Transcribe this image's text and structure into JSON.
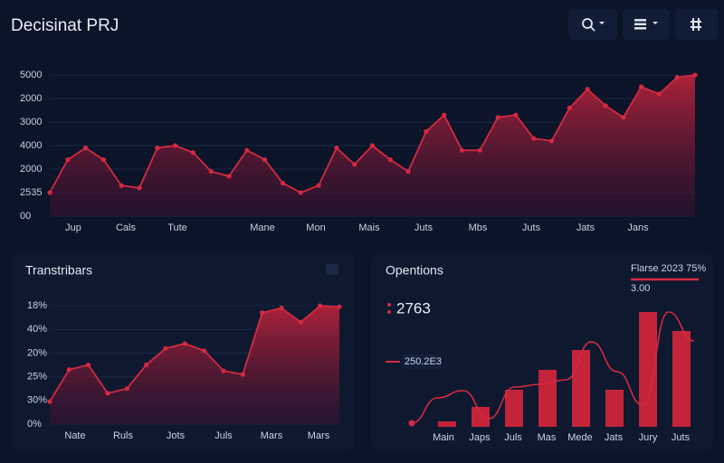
{
  "header": {
    "title": "Decisinat PRJ"
  },
  "chart_data": [
    {
      "type": "area",
      "color": "#d42a40",
      "grid": true,
      "ylim": [
        0,
        6.2
      ],
      "yticks": [
        {
          "value": 0,
          "label": "00"
        },
        {
          "value": 1,
          "label": "2535"
        },
        {
          "value": 2,
          "label": "2000"
        },
        {
          "value": 3,
          "label": "4000"
        },
        {
          "value": 4,
          "label": "3000"
        },
        {
          "value": 5,
          "label": "2000"
        },
        {
          "value": 6,
          "label": "5000"
        }
      ],
      "x_labels": [
        "Jup",
        "Cals",
        "Tute",
        "Mane",
        "Mon",
        "Mais",
        "Juts",
        "Mbs",
        "Juts",
        "Jats",
        "Jans"
      ],
      "values": [
        1.0,
        2.4,
        2.9,
        2.4,
        1.3,
        1.2,
        2.9,
        3.0,
        2.7,
        1.9,
        1.7,
        2.8,
        2.4,
        1.4,
        1.0,
        1.3,
        2.9,
        2.2,
        3.0,
        2.4,
        1.9,
        3.6,
        4.3,
        2.8,
        2.8,
        4.2,
        4.3,
        3.3,
        3.2,
        4.6,
        5.4,
        4.7,
        4.2,
        5.5,
        5.2,
        5.9,
        6.0
      ]
    },
    {
      "type": "area",
      "title": "Transtribars",
      "color": "#d42a40",
      "grid": true,
      "ylim": [
        0,
        5.2
      ],
      "yticks": [
        {
          "value": 0,
          "label": "0%"
        },
        {
          "value": 1,
          "label": "30%"
        },
        {
          "value": 2,
          "label": "25%"
        },
        {
          "value": 3,
          "label": "20%"
        },
        {
          "value": 4,
          "label": "40%"
        },
        {
          "value": 5,
          "label": "18%"
        }
      ],
      "x_labels": [
        "Nate",
        "Ruls",
        "Jots",
        "Juls",
        "Mars",
        "Mars"
      ],
      "values": [
        0.95,
        2.3,
        2.5,
        1.3,
        1.5,
        2.5,
        3.2,
        3.4,
        3.1,
        2.25,
        2.1,
        4.7,
        4.9,
        4.3,
        5.0,
        4.95
      ]
    },
    {
      "type": "bar",
      "title": "Opentions",
      "ylim": [
        0,
        130
      ],
      "annotations": [
        "2763",
        "250.2E3",
        "Flarse 2023 75%",
        "3.00"
      ],
      "x_labels": [
        "Main",
        "Japs",
        "Juls",
        "Mas",
        "Mede",
        "Jats",
        "Jury",
        "Juts"
      ],
      "series": [
        {
          "type": "bar",
          "color": "#c3243a",
          "values": [
            6,
            22,
            41,
            63,
            85,
            41,
            127,
            106
          ]
        },
        {
          "type": "line",
          "color": "#d42a40",
          "values": [
            4,
            32,
            40,
            9,
            44,
            47,
            52,
            94,
            61,
            24,
            127,
            95
          ]
        }
      ]
    }
  ]
}
